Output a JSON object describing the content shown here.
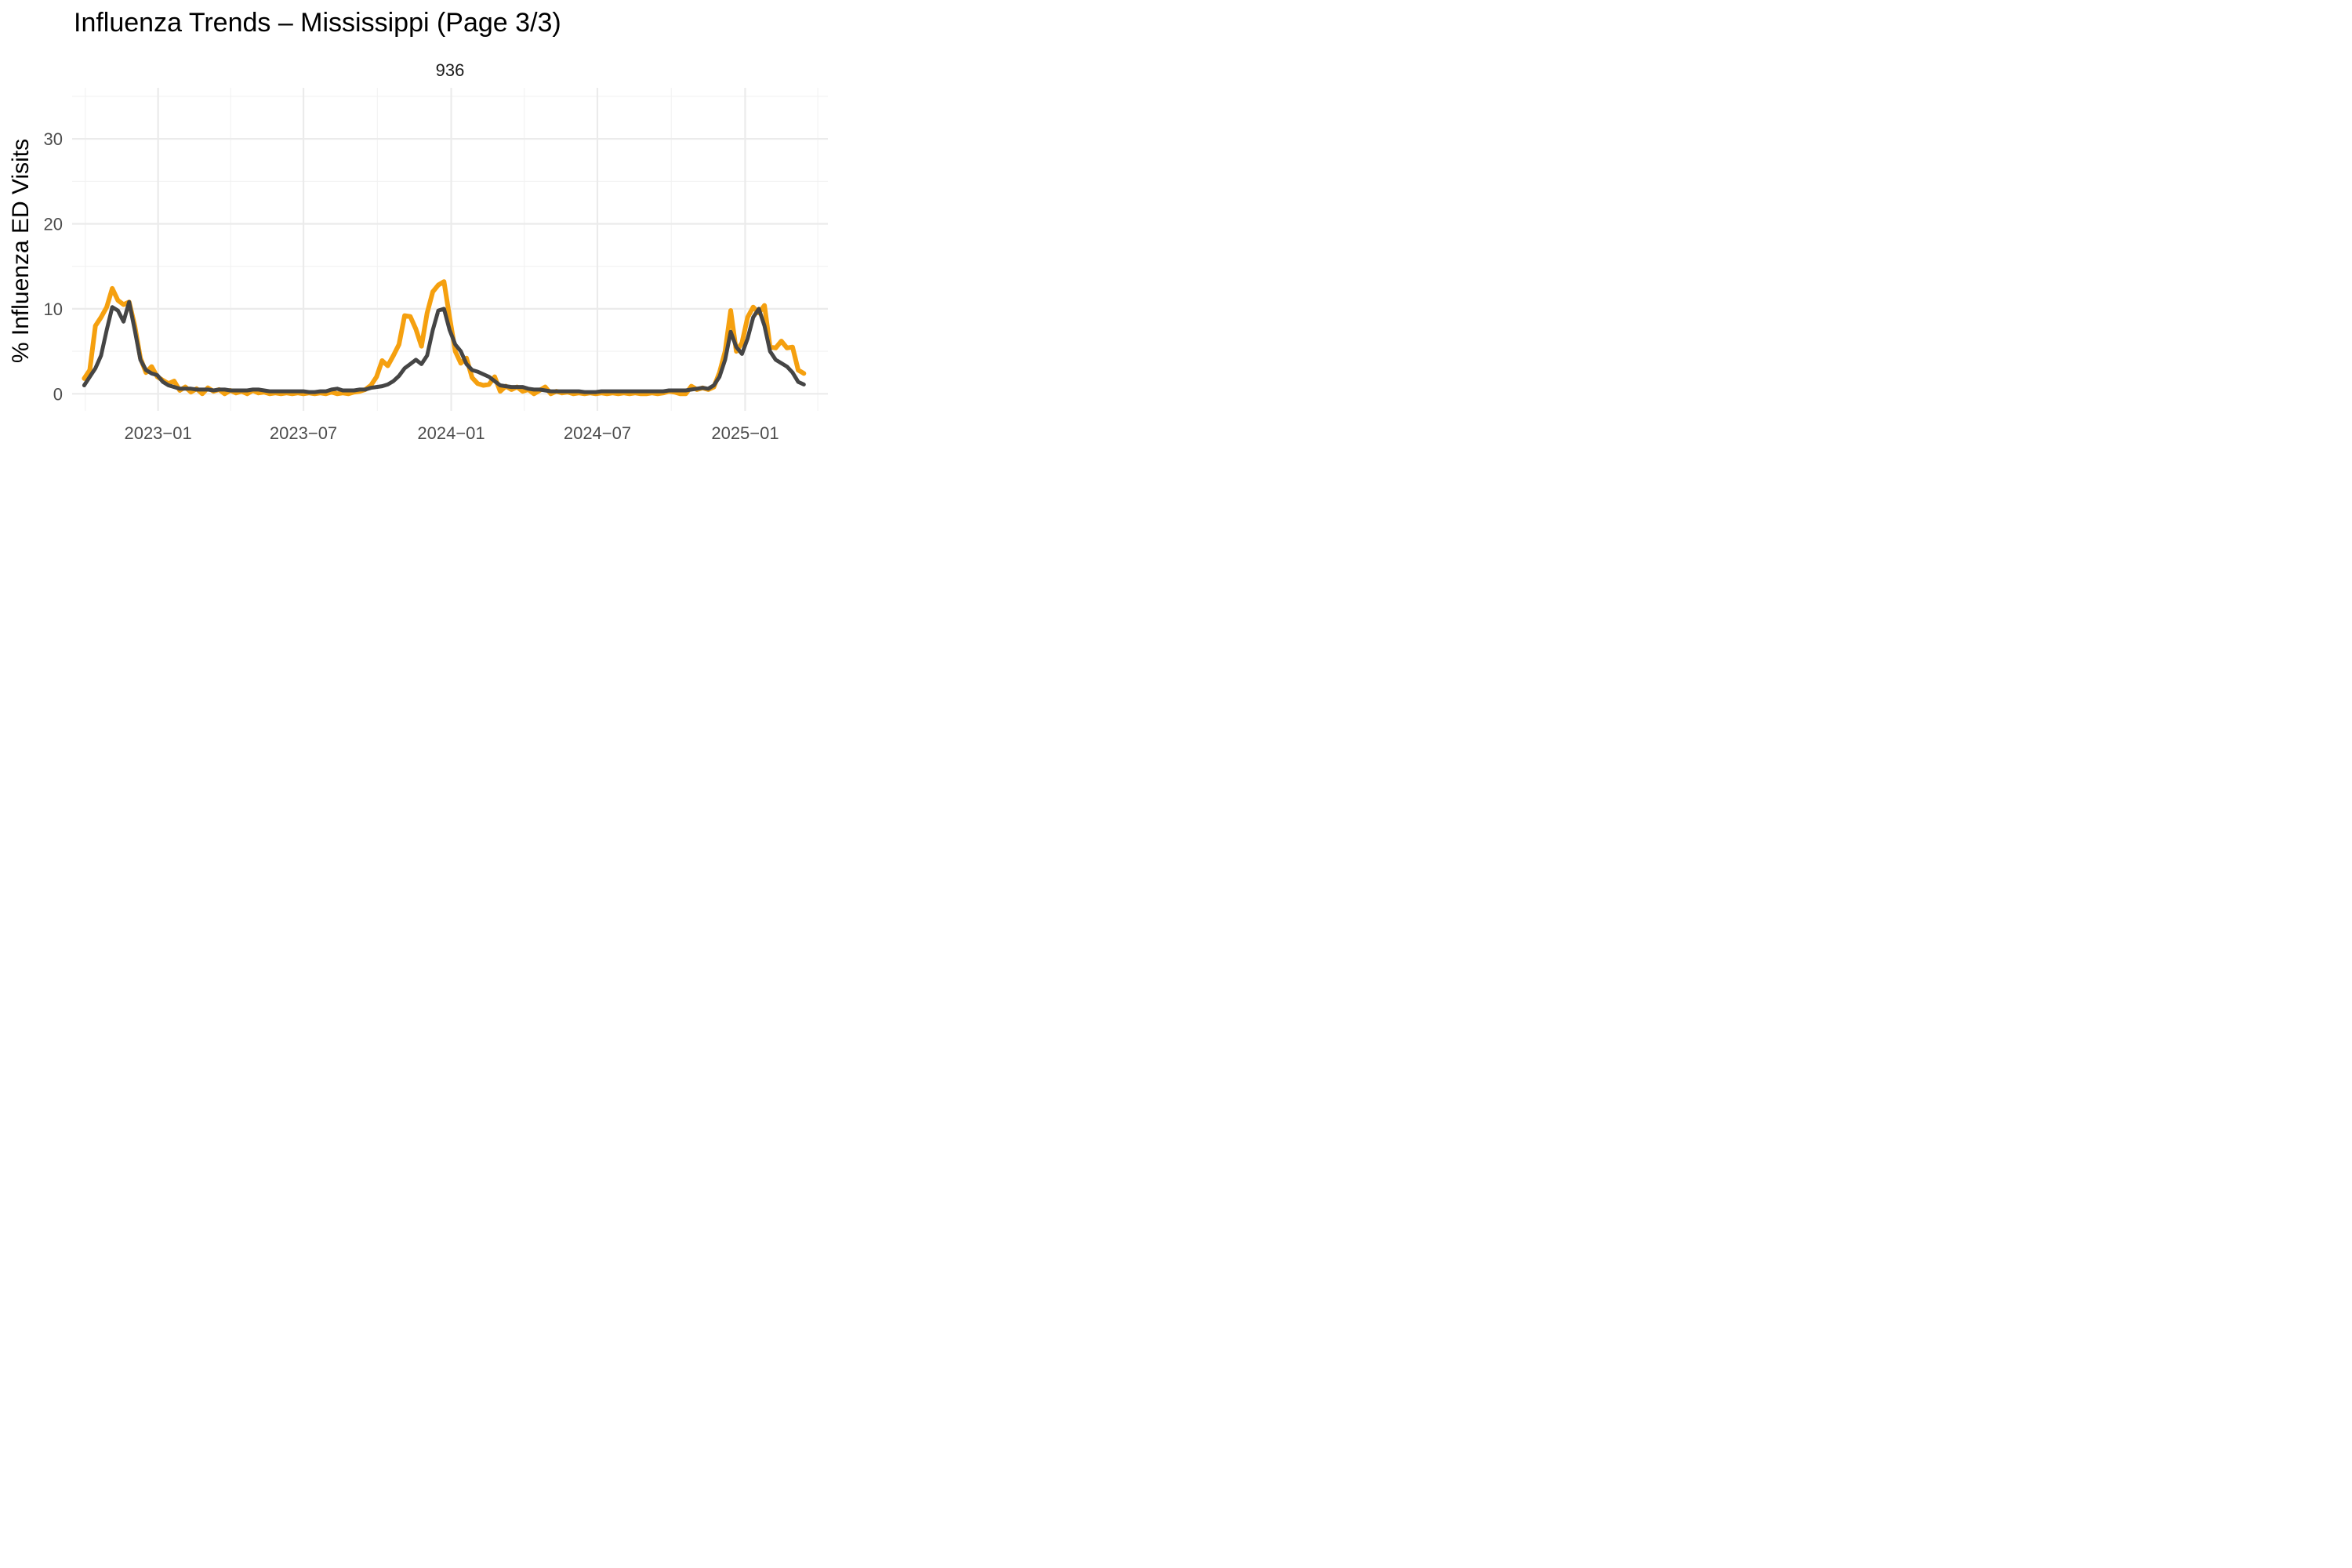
{
  "chart_data": {
    "type": "line",
    "title": "Influenza Trends – Mississippi (Page 3/3)",
    "panel_label": "936",
    "xlabel": "",
    "ylabel": "% Influenza ED Visits",
    "x_tick_labels": [
      "2023−01",
      "2023−07",
      "2024−01",
      "2024−07",
      "2025−01"
    ],
    "x_tick_dates": [
      "2023-01-01",
      "2023-07-01",
      "2024-01-01",
      "2024-07-01",
      "2025-01-01"
    ],
    "y_ticks": [
      0,
      10,
      20,
      30
    ],
    "y_tick_labels": [
      "0",
      "10",
      "20",
      "30"
    ],
    "ylim": [
      -2,
      36
    ],
    "xlim": [
      "2022-09-16",
      "2025-04-14"
    ],
    "grid": true,
    "legend": "none",
    "series": [
      {
        "color": "#F5A00F",
        "points": [
          [
            "2022-10-01",
            1.8
          ],
          [
            "2022-10-08",
            2.8
          ],
          [
            "2022-10-15",
            8.0
          ],
          [
            "2022-10-22",
            9.0
          ],
          [
            "2022-10-29",
            10.2
          ],
          [
            "2022-11-05",
            12.4
          ],
          [
            "2022-11-12",
            11.0
          ],
          [
            "2022-11-19",
            10.5
          ],
          [
            "2022-11-26",
            10.8
          ],
          [
            "2022-12-03",
            8.0
          ],
          [
            "2022-12-10",
            4.2
          ],
          [
            "2022-12-17",
            2.5
          ],
          [
            "2022-12-24",
            3.2
          ],
          [
            "2022-12-31",
            2.0
          ],
          [
            "2023-01-07",
            1.6
          ],
          [
            "2023-01-14",
            1.2
          ],
          [
            "2023-01-21",
            1.5
          ],
          [
            "2023-01-28",
            0.4
          ],
          [
            "2023-02-04",
            0.8
          ],
          [
            "2023-02-11",
            0.2
          ],
          [
            "2023-02-18",
            0.6
          ],
          [
            "2023-02-25",
            0.0
          ],
          [
            "2023-03-04",
            0.7
          ],
          [
            "2023-03-11",
            0.3
          ],
          [
            "2023-03-18",
            0.5
          ],
          [
            "2023-03-25",
            0.0
          ],
          [
            "2023-04-01",
            0.4
          ],
          [
            "2023-04-08",
            0.1
          ],
          [
            "2023-04-15",
            0.3
          ],
          [
            "2023-04-22",
            0.0
          ],
          [
            "2023-04-29",
            0.4
          ],
          [
            "2023-05-06",
            0.1
          ],
          [
            "2023-05-13",
            0.2
          ],
          [
            "2023-05-20",
            0.0
          ],
          [
            "2023-05-27",
            0.1
          ],
          [
            "2023-06-03",
            0.0
          ],
          [
            "2023-06-10",
            0.1
          ],
          [
            "2023-06-17",
            0.0
          ],
          [
            "2023-06-24",
            0.1
          ],
          [
            "2023-07-01",
            0.0
          ],
          [
            "2023-07-08",
            0.1
          ],
          [
            "2023-07-15",
            0.0
          ],
          [
            "2023-07-22",
            0.1
          ],
          [
            "2023-07-29",
            0.0
          ],
          [
            "2023-08-05",
            0.2
          ],
          [
            "2023-08-12",
            0.0
          ],
          [
            "2023-08-19",
            0.1
          ],
          [
            "2023-08-26",
            0.0
          ],
          [
            "2023-09-02",
            0.2
          ],
          [
            "2023-09-09",
            0.3
          ],
          [
            "2023-09-16",
            0.5
          ],
          [
            "2023-09-23",
            1.0
          ],
          [
            "2023-09-30",
            2.0
          ],
          [
            "2023-10-07",
            3.9
          ],
          [
            "2023-10-14",
            3.3
          ],
          [
            "2023-10-21",
            4.5
          ],
          [
            "2023-10-28",
            5.8
          ],
          [
            "2023-11-04",
            9.2
          ],
          [
            "2023-11-11",
            9.1
          ],
          [
            "2023-11-18",
            7.6
          ],
          [
            "2023-11-25",
            5.6
          ],
          [
            "2023-12-02",
            9.5
          ],
          [
            "2023-12-09",
            12.0
          ],
          [
            "2023-12-16",
            12.8
          ],
          [
            "2023-12-23",
            13.2
          ],
          [
            "2023-12-30",
            9.0
          ],
          [
            "2024-01-06",
            5.0
          ],
          [
            "2024-01-13",
            3.6
          ],
          [
            "2024-01-20",
            4.2
          ],
          [
            "2024-01-27",
            1.9
          ],
          [
            "2024-02-03",
            1.2
          ],
          [
            "2024-02-10",
            1.0
          ],
          [
            "2024-02-17",
            1.1
          ],
          [
            "2024-02-24",
            2.0
          ],
          [
            "2024-03-02",
            0.3
          ],
          [
            "2024-03-09",
            0.9
          ],
          [
            "2024-03-16",
            0.5
          ],
          [
            "2024-03-23",
            0.8
          ],
          [
            "2024-03-30",
            0.3
          ],
          [
            "2024-04-06",
            0.5
          ],
          [
            "2024-04-13",
            0.0
          ],
          [
            "2024-04-20",
            0.4
          ],
          [
            "2024-04-27",
            0.8
          ],
          [
            "2024-05-04",
            0.0
          ],
          [
            "2024-05-11",
            0.3
          ],
          [
            "2024-05-18",
            0.1
          ],
          [
            "2024-05-25",
            0.2
          ],
          [
            "2024-06-01",
            0.0
          ],
          [
            "2024-06-08",
            0.1
          ],
          [
            "2024-06-15",
            0.0
          ],
          [
            "2024-06-22",
            0.1
          ],
          [
            "2024-06-29",
            0.0
          ],
          [
            "2024-07-06",
            0.1
          ],
          [
            "2024-07-13",
            0.0
          ],
          [
            "2024-07-20",
            0.1
          ],
          [
            "2024-07-27",
            0.0
          ],
          [
            "2024-08-03",
            0.1
          ],
          [
            "2024-08-10",
            0.0
          ],
          [
            "2024-08-17",
            0.1
          ],
          [
            "2024-08-24",
            0.0
          ],
          [
            "2024-08-31",
            0.0
          ],
          [
            "2024-09-07",
            0.1
          ],
          [
            "2024-09-14",
            0.0
          ],
          [
            "2024-09-21",
            0.1
          ],
          [
            "2024-09-28",
            0.3
          ],
          [
            "2024-10-05",
            0.2
          ],
          [
            "2024-10-12",
            0.0
          ],
          [
            "2024-10-19",
            0.0
          ],
          [
            "2024-10-26",
            0.9
          ],
          [
            "2024-11-02",
            0.5
          ],
          [
            "2024-11-09",
            0.7
          ],
          [
            "2024-11-16",
            0.5
          ],
          [
            "2024-11-23",
            0.8
          ],
          [
            "2024-11-30",
            2.5
          ],
          [
            "2024-12-07",
            5.0
          ],
          [
            "2024-12-14",
            9.8
          ],
          [
            "2024-12-21",
            5.0
          ],
          [
            "2024-12-28",
            6.0
          ],
          [
            "2025-01-04",
            9.0
          ],
          [
            "2025-01-11",
            10.2
          ],
          [
            "2025-01-18",
            9.5
          ],
          [
            "2025-01-25",
            10.4
          ],
          [
            "2025-02-01",
            5.5
          ],
          [
            "2025-02-08",
            5.4
          ],
          [
            "2025-02-15",
            6.2
          ],
          [
            "2025-02-22",
            5.4
          ],
          [
            "2025-03-01",
            5.5
          ],
          [
            "2025-03-08",
            2.8
          ],
          [
            "2025-03-15",
            2.4
          ]
        ]
      },
      {
        "color": "#454545",
        "points": [
          [
            "2022-10-01",
            1.0
          ],
          [
            "2022-10-08",
            2.0
          ],
          [
            "2022-10-15",
            3.0
          ],
          [
            "2022-10-22",
            4.5
          ],
          [
            "2022-10-29",
            7.5
          ],
          [
            "2022-11-05",
            10.2
          ],
          [
            "2022-11-12",
            9.8
          ],
          [
            "2022-11-19",
            8.5
          ],
          [
            "2022-11-26",
            10.8
          ],
          [
            "2022-12-03",
            7.5
          ],
          [
            "2022-12-10",
            4.0
          ],
          [
            "2022-12-17",
            2.8
          ],
          [
            "2022-12-24",
            2.4
          ],
          [
            "2022-12-31",
            2.2
          ],
          [
            "2023-01-07",
            1.4
          ],
          [
            "2023-01-14",
            1.0
          ],
          [
            "2023-01-21",
            0.8
          ],
          [
            "2023-01-28",
            0.6
          ],
          [
            "2023-02-04",
            0.6
          ],
          [
            "2023-02-11",
            0.6
          ],
          [
            "2023-02-18",
            0.5
          ],
          [
            "2023-02-25",
            0.5
          ],
          [
            "2023-03-04",
            0.5
          ],
          [
            "2023-03-11",
            0.4
          ],
          [
            "2023-03-18",
            0.5
          ],
          [
            "2023-03-25",
            0.5
          ],
          [
            "2023-04-01",
            0.4
          ],
          [
            "2023-04-08",
            0.4
          ],
          [
            "2023-04-15",
            0.4
          ],
          [
            "2023-04-22",
            0.4
          ],
          [
            "2023-04-29",
            0.5
          ],
          [
            "2023-05-06",
            0.5
          ],
          [
            "2023-05-13",
            0.4
          ],
          [
            "2023-05-20",
            0.3
          ],
          [
            "2023-05-27",
            0.3
          ],
          [
            "2023-06-03",
            0.3
          ],
          [
            "2023-06-10",
            0.3
          ],
          [
            "2023-06-17",
            0.3
          ],
          [
            "2023-06-24",
            0.3
          ],
          [
            "2023-07-01",
            0.3
          ],
          [
            "2023-07-08",
            0.2
          ],
          [
            "2023-07-15",
            0.2
          ],
          [
            "2023-07-22",
            0.3
          ],
          [
            "2023-07-29",
            0.3
          ],
          [
            "2023-08-05",
            0.5
          ],
          [
            "2023-08-12",
            0.6
          ],
          [
            "2023-08-19",
            0.4
          ],
          [
            "2023-08-26",
            0.4
          ],
          [
            "2023-09-02",
            0.4
          ],
          [
            "2023-09-09",
            0.5
          ],
          [
            "2023-09-16",
            0.5
          ],
          [
            "2023-09-23",
            0.7
          ],
          [
            "2023-09-30",
            0.8
          ],
          [
            "2023-10-07",
            0.9
          ],
          [
            "2023-10-14",
            1.1
          ],
          [
            "2023-10-21",
            1.5
          ],
          [
            "2023-10-28",
            2.1
          ],
          [
            "2023-11-04",
            3.0
          ],
          [
            "2023-11-11",
            3.5
          ],
          [
            "2023-11-18",
            4.0
          ],
          [
            "2023-11-25",
            3.5
          ],
          [
            "2023-12-02",
            4.5
          ],
          [
            "2023-12-09",
            7.5
          ],
          [
            "2023-12-16",
            9.8
          ],
          [
            "2023-12-23",
            10.0
          ],
          [
            "2023-12-30",
            7.5
          ],
          [
            "2024-01-06",
            5.8
          ],
          [
            "2024-01-13",
            5.0
          ],
          [
            "2024-01-20",
            3.5
          ],
          [
            "2024-01-27",
            2.8
          ],
          [
            "2024-02-03",
            2.6
          ],
          [
            "2024-02-10",
            2.3
          ],
          [
            "2024-02-17",
            2.0
          ],
          [
            "2024-02-24",
            1.5
          ],
          [
            "2024-03-02",
            1.0
          ],
          [
            "2024-03-09",
            0.9
          ],
          [
            "2024-03-16",
            0.8
          ],
          [
            "2024-03-23",
            0.8
          ],
          [
            "2024-03-30",
            0.8
          ],
          [
            "2024-04-06",
            0.6
          ],
          [
            "2024-04-13",
            0.5
          ],
          [
            "2024-04-20",
            0.5
          ],
          [
            "2024-04-27",
            0.4
          ],
          [
            "2024-05-04",
            0.3
          ],
          [
            "2024-05-11",
            0.3
          ],
          [
            "2024-05-18",
            0.3
          ],
          [
            "2024-05-25",
            0.3
          ],
          [
            "2024-06-01",
            0.3
          ],
          [
            "2024-06-08",
            0.3
          ],
          [
            "2024-06-15",
            0.2
          ],
          [
            "2024-06-22",
            0.2
          ],
          [
            "2024-06-29",
            0.2
          ],
          [
            "2024-07-06",
            0.3
          ],
          [
            "2024-07-13",
            0.3
          ],
          [
            "2024-07-20",
            0.3
          ],
          [
            "2024-07-27",
            0.3
          ],
          [
            "2024-08-03",
            0.3
          ],
          [
            "2024-08-10",
            0.3
          ],
          [
            "2024-08-17",
            0.3
          ],
          [
            "2024-08-24",
            0.3
          ],
          [
            "2024-08-31",
            0.3
          ],
          [
            "2024-09-07",
            0.3
          ],
          [
            "2024-09-14",
            0.3
          ],
          [
            "2024-09-21",
            0.3
          ],
          [
            "2024-09-28",
            0.4
          ],
          [
            "2024-10-05",
            0.4
          ],
          [
            "2024-10-12",
            0.4
          ],
          [
            "2024-10-19",
            0.4
          ],
          [
            "2024-10-26",
            0.5
          ],
          [
            "2024-11-02",
            0.6
          ],
          [
            "2024-11-09",
            0.7
          ],
          [
            "2024-11-16",
            0.6
          ],
          [
            "2024-11-23",
            1.0
          ],
          [
            "2024-11-30",
            2.0
          ],
          [
            "2024-12-07",
            4.0
          ],
          [
            "2024-12-14",
            7.3
          ],
          [
            "2024-12-21",
            5.5
          ],
          [
            "2024-12-28",
            4.7
          ],
          [
            "2025-01-04",
            6.5
          ],
          [
            "2025-01-11",
            9.0
          ],
          [
            "2025-01-18",
            10.0
          ],
          [
            "2025-01-25",
            8.0
          ],
          [
            "2025-02-01",
            5.0
          ],
          [
            "2025-02-08",
            4.0
          ],
          [
            "2025-02-15",
            3.6
          ],
          [
            "2025-02-22",
            3.2
          ],
          [
            "2025-03-01",
            2.5
          ],
          [
            "2025-03-08",
            1.4
          ],
          [
            "2025-03-15",
            1.1
          ]
        ]
      }
    ]
  }
}
